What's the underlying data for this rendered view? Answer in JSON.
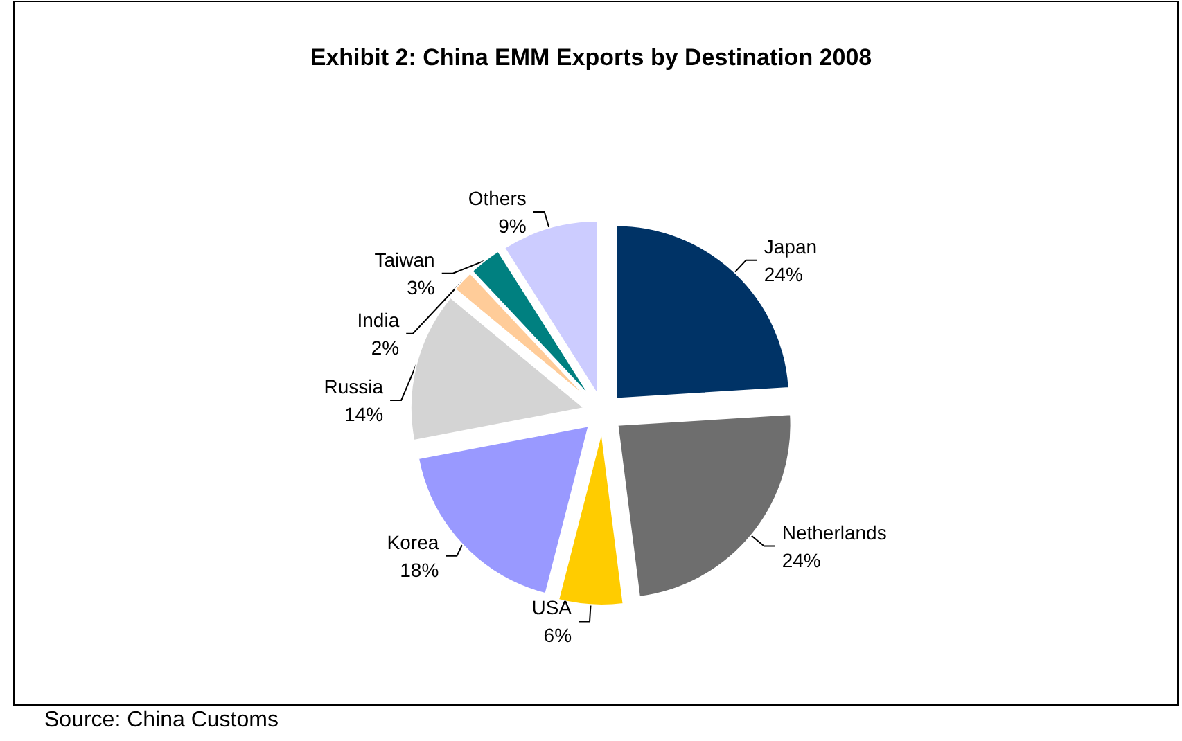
{
  "chart_data": {
    "type": "pie",
    "title": "Exhibit 2: China EMM Exports by Destination 2008",
    "categories": [
      "Japan",
      "Netherlands",
      "USA",
      "Korea",
      "Russia",
      "India",
      "Taiwan",
      "Others"
    ],
    "values": [
      24,
      24,
      6,
      18,
      14,
      2,
      3,
      9
    ],
    "value_labels": [
      "24%",
      "24%",
      "6%",
      "18%",
      "14%",
      "2%",
      "3%",
      "9%"
    ],
    "colors": [
      "#003366",
      "#6e6e6e",
      "#ffcc00",
      "#9999ff",
      "#d4d4d4",
      "#ffcc99",
      "#008080",
      "#ccccff"
    ],
    "annotations": [
      "Source: China Customs"
    ],
    "legend": false
  }
}
